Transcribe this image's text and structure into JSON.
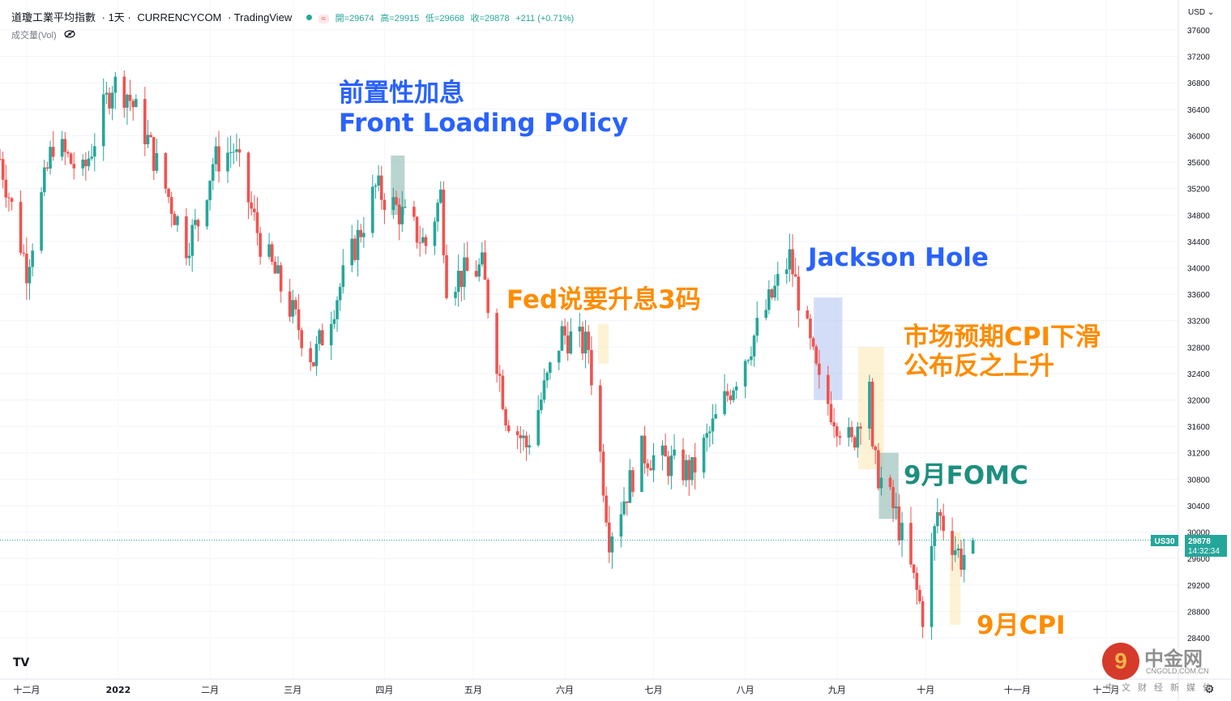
{
  "header": {
    "symbol_name": "道瓊工業平均指數",
    "interval": "· 1天 ·",
    "exchange": "CURRENCYCOM",
    "platform": "· TradingView",
    "open": "開=29674",
    "high": "高=29915",
    "low": "低=29668",
    "close": "收=29878",
    "change": "+211 (+0.71%)",
    "approx_symbol": "≈",
    "volume_label": "成交量(Vol)",
    "eye_icon": "eye-off-icon"
  },
  "price_axis": {
    "currency_menu": "USD",
    "ticks": [
      "37600",
      "37200",
      "36800",
      "36400",
      "36000",
      "35600",
      "35200",
      "34800",
      "34400",
      "34000",
      "33600",
      "33200",
      "32800",
      "32400",
      "32000",
      "31600",
      "31200",
      "30800",
      "30400",
      "30000",
      "29600",
      "29200",
      "28800",
      "28400"
    ],
    "symbol_badge": "US30",
    "last_price": "29878",
    "countdown": "14:32:34"
  },
  "time_axis": {
    "labels": [
      "十二月",
      "2022",
      "二月",
      "三月",
      "四月",
      "五月",
      "六月",
      "七月",
      "八月",
      "九月",
      "十月",
      "十一月",
      "十二月"
    ]
  },
  "annotations": [
    {
      "id": "front-loading",
      "line1": "前置性加息",
      "line2": "Front Loading Policy",
      "color": "#2962ff"
    },
    {
      "id": "fed-3",
      "line1": "Fed说要升息3码",
      "color": "#ff8c00"
    },
    {
      "id": "jackson-hole",
      "line1": "Jackson Hole",
      "color": "#2962ff"
    },
    {
      "id": "cpi-expect",
      "line1": "市场预期CPI下滑",
      "line2": "公布反之上升",
      "color": "#ff8c00"
    },
    {
      "id": "fomc-sep",
      "line1": "9月FOMC",
      "color": "#1d8f7f"
    },
    {
      "id": "cpi-sep",
      "line1": "9月CPI",
      "color": "#ff8c00"
    }
  ],
  "watermark": {
    "brand_cn": "中金网",
    "site": "CNGOLD.COM.CN",
    "subtitle": "中文财经新媒体",
    "logo_glyph": "9"
  },
  "colors": {
    "up": "#26a69a",
    "down": "#ef5350",
    "last_line": "#26a69a"
  },
  "chart_data": {
    "type": "candlestick",
    "y_unit": "USD",
    "ylim": [
      28150,
      37950
    ],
    "x_range": [
      "2021-11-22",
      "2022-12-12"
    ],
    "last_price": 29878,
    "last_bar": {
      "open": 29674,
      "high": 29915,
      "low": 29668,
      "close": 29878
    },
    "anchors": [
      {
        "date": "2021-11-22",
        "close": 35650
      },
      {
        "date": "2021-12-01",
        "close": 34000
      },
      {
        "date": "2021-12-10",
        "close": 35900
      },
      {
        "date": "2021-12-20",
        "close": 35400
      },
      {
        "date": "2021-12-30",
        "close": 36800
      },
      {
        "date": "2022-01-04",
        "close": 36650
      },
      {
        "date": "2022-01-10",
        "close": 36050
      },
      {
        "date": "2022-01-24",
        "close": 34350
      },
      {
        "date": "2022-01-28",
        "close": 34700
      },
      {
        "date": "2022-02-02",
        "close": 35600
      },
      {
        "date": "2022-02-09",
        "close": 35800
      },
      {
        "date": "2022-02-18",
        "close": 34400
      },
      {
        "date": "2022-03-08",
        "close": 32600
      },
      {
        "date": "2022-03-29",
        "close": 35200
      },
      {
        "date": "2022-04-05",
        "close": 34900
      },
      {
        "date": "2022-04-15",
        "close": 34350
      },
      {
        "date": "2022-04-20",
        "close": 35100
      },
      {
        "date": "2022-04-22",
        "close": 33800
      },
      {
        "date": "2022-05-04",
        "close": 34000
      },
      {
        "date": "2022-05-12",
        "close": 31800
      },
      {
        "date": "2022-05-19",
        "close": 31300
      },
      {
        "date": "2022-05-31",
        "close": 33000
      },
      {
        "date": "2022-06-09",
        "close": 32800
      },
      {
        "date": "2022-06-16",
        "close": 29950
      },
      {
        "date": "2022-06-27",
        "close": 31200
      },
      {
        "date": "2022-07-14",
        "close": 30900
      },
      {
        "date": "2022-08-16",
        "close": 34150
      },
      {
        "date": "2022-08-26",
        "close": 32200
      },
      {
        "date": "2022-09-06",
        "close": 31300
      },
      {
        "date": "2022-09-12",
        "close": 32350
      },
      {
        "date": "2022-09-13",
        "close": 31100
      },
      {
        "date": "2022-09-21",
        "close": 30250
      },
      {
        "date": "2022-09-30",
        "close": 28750
      },
      {
        "date": "2022-10-05",
        "close": 30300
      },
      {
        "date": "2022-10-13",
        "close": 29600
      },
      {
        "date": "2022-10-17",
        "close": 29878
      }
    ],
    "highlights": [
      {
        "from": "2022-04-04",
        "to": "2022-04-07",
        "low": 34800,
        "high": 35700,
        "color": "#8cb8b0"
      },
      {
        "from": "2022-06-13",
        "to": "2022-06-15",
        "low": 32550,
        "high": 33150,
        "color": "#fbe9b7"
      },
      {
        "from": "2022-08-25",
        "to": "2022-09-02",
        "low": 32000,
        "high": 33550,
        "color": "#b7c7f2"
      },
      {
        "from": "2022-09-09",
        "to": "2022-09-16",
        "low": 30950,
        "high": 32800,
        "color": "#fbe9b7"
      },
      {
        "from": "2022-09-16",
        "to": "2022-09-21",
        "low": 30200,
        "high": 31200,
        "color": "#8cb8b0"
      },
      {
        "from": "2022-10-10",
        "to": "2022-10-12",
        "low": 28600,
        "high": 30000,
        "color": "#fbe9b7"
      }
    ]
  }
}
